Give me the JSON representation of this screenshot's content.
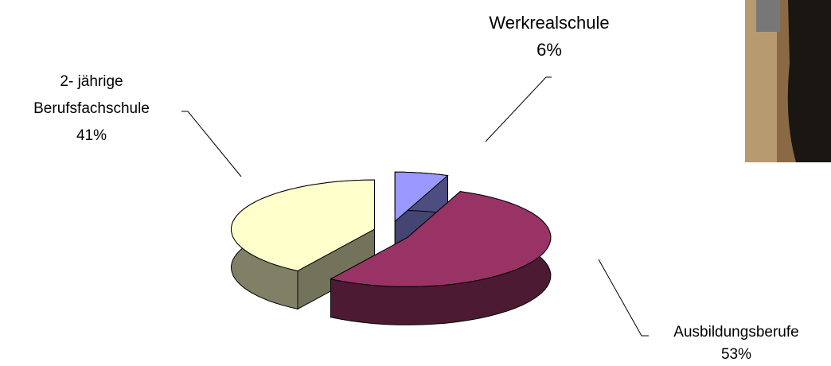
{
  "chart_data": {
    "type": "pie",
    "categories": [
      "Werkrealschule",
      "Ausbildungsberufe",
      "2- jährige Berufsfachschule"
    ],
    "values": [
      6,
      53,
      41
    ],
    "value_labels": [
      "6%",
      "53%",
      "41%"
    ],
    "colors": [
      "#9999ff",
      "#993366",
      "#ffffcc"
    ]
  }
}
